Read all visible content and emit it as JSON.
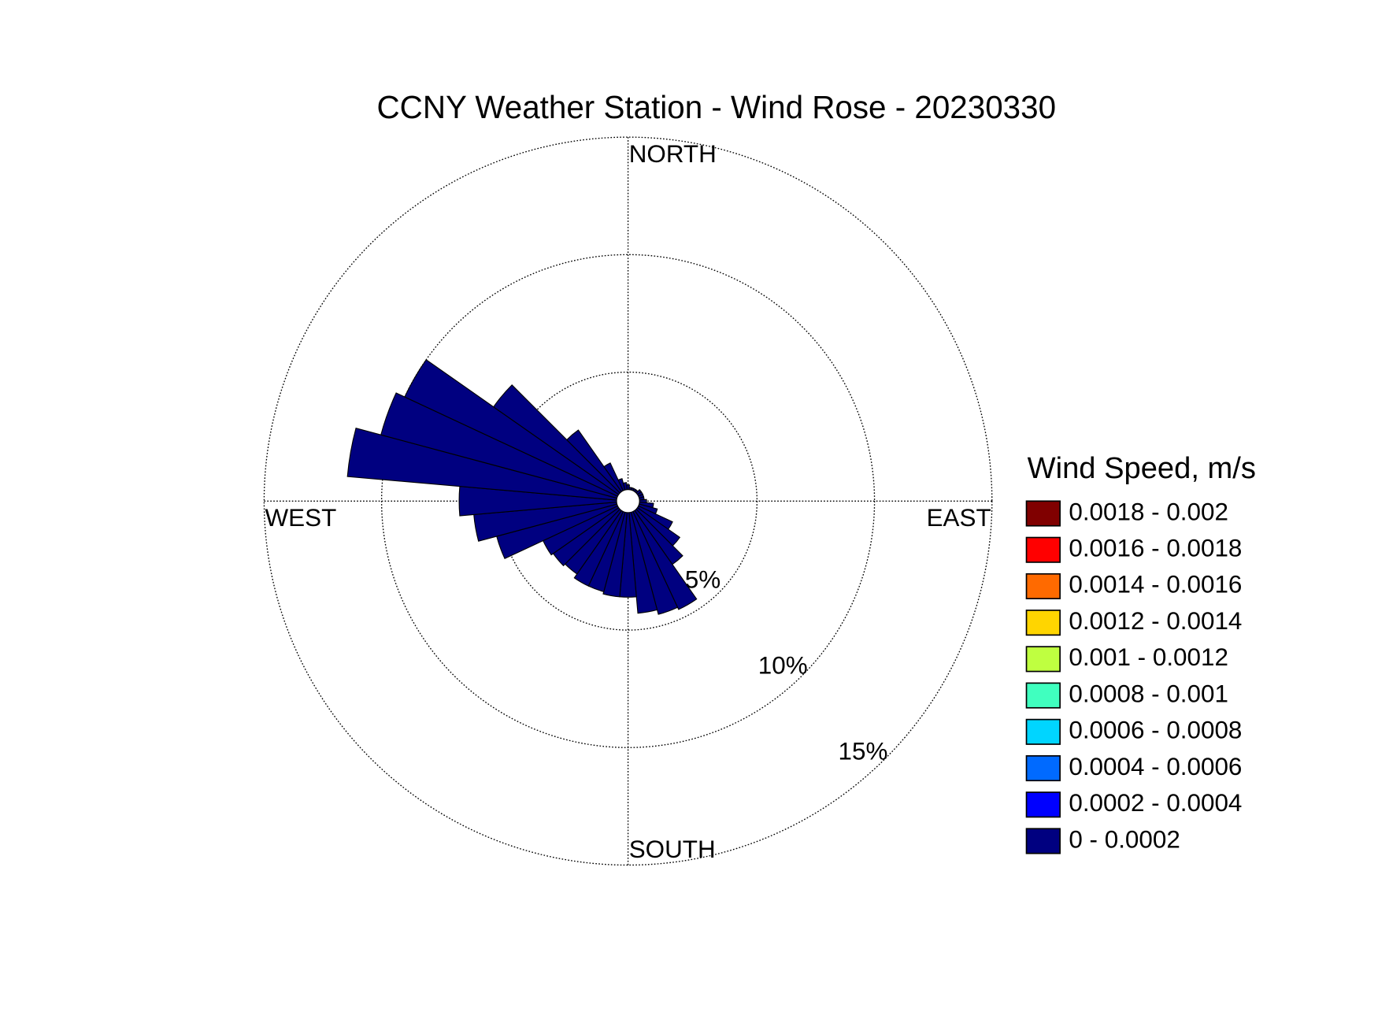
{
  "chart_data": {
    "type": "windrose",
    "title": "CCNY Weather Station - Wind Rose - 20230330",
    "directions": [
      "NORTH",
      "EAST",
      "SOUTH",
      "WEST"
    ],
    "values": [
      0.2,
      0.1,
      0.1,
      0.1,
      0.1,
      0.2,
      0.2,
      0.2,
      0.2,
      0.3,
      0.6,
      0.8,
      1.6,
      2.2,
      2.8,
      4.6,
      4.5,
      4.3,
      3.6,
      3.6,
      3.5,
      3.5,
      3.3,
      3.4,
      3.5,
      5.3,
      6.1,
      6.7,
      11.5,
      10.4,
      10.0,
      6.5,
      3.2,
      1.3,
      0.5,
      0.3
    ],
    "color": "#000080",
    "rlim": [
      0,
      15
    ],
    "rticks": [
      {
        "value": 5,
        "label": "5%"
      },
      {
        "value": 10,
        "label": "10%"
      },
      {
        "value": 15,
        "label": "15%"
      }
    ],
    "legend_title": "Wind Speed, m/s",
    "legend": [
      {
        "label": "0.0018 - 0.002",
        "color": "#800000"
      },
      {
        "label": "0.0016 - 0.0018",
        "color": "#ff0000"
      },
      {
        "label": "0.0014 - 0.0016",
        "color": "#ff6a00"
      },
      {
        "label": "0.0012 - 0.0014",
        "color": "#ffd500"
      },
      {
        "label": "0.001 - 0.0012",
        "color": "#bfff40"
      },
      {
        "label": "0.0008 - 0.001",
        "color": "#40ffbf"
      },
      {
        "label": "0.0006 - 0.0008",
        "color": "#00d5ff"
      },
      {
        "label": "0.0004 - 0.0006",
        "color": "#006aff"
      },
      {
        "label": "0.0002 - 0.0004",
        "color": "#0000ff"
      },
      {
        "label": "0 - 0.0002",
        "color": "#000080"
      }
    ],
    "grid": true
  }
}
